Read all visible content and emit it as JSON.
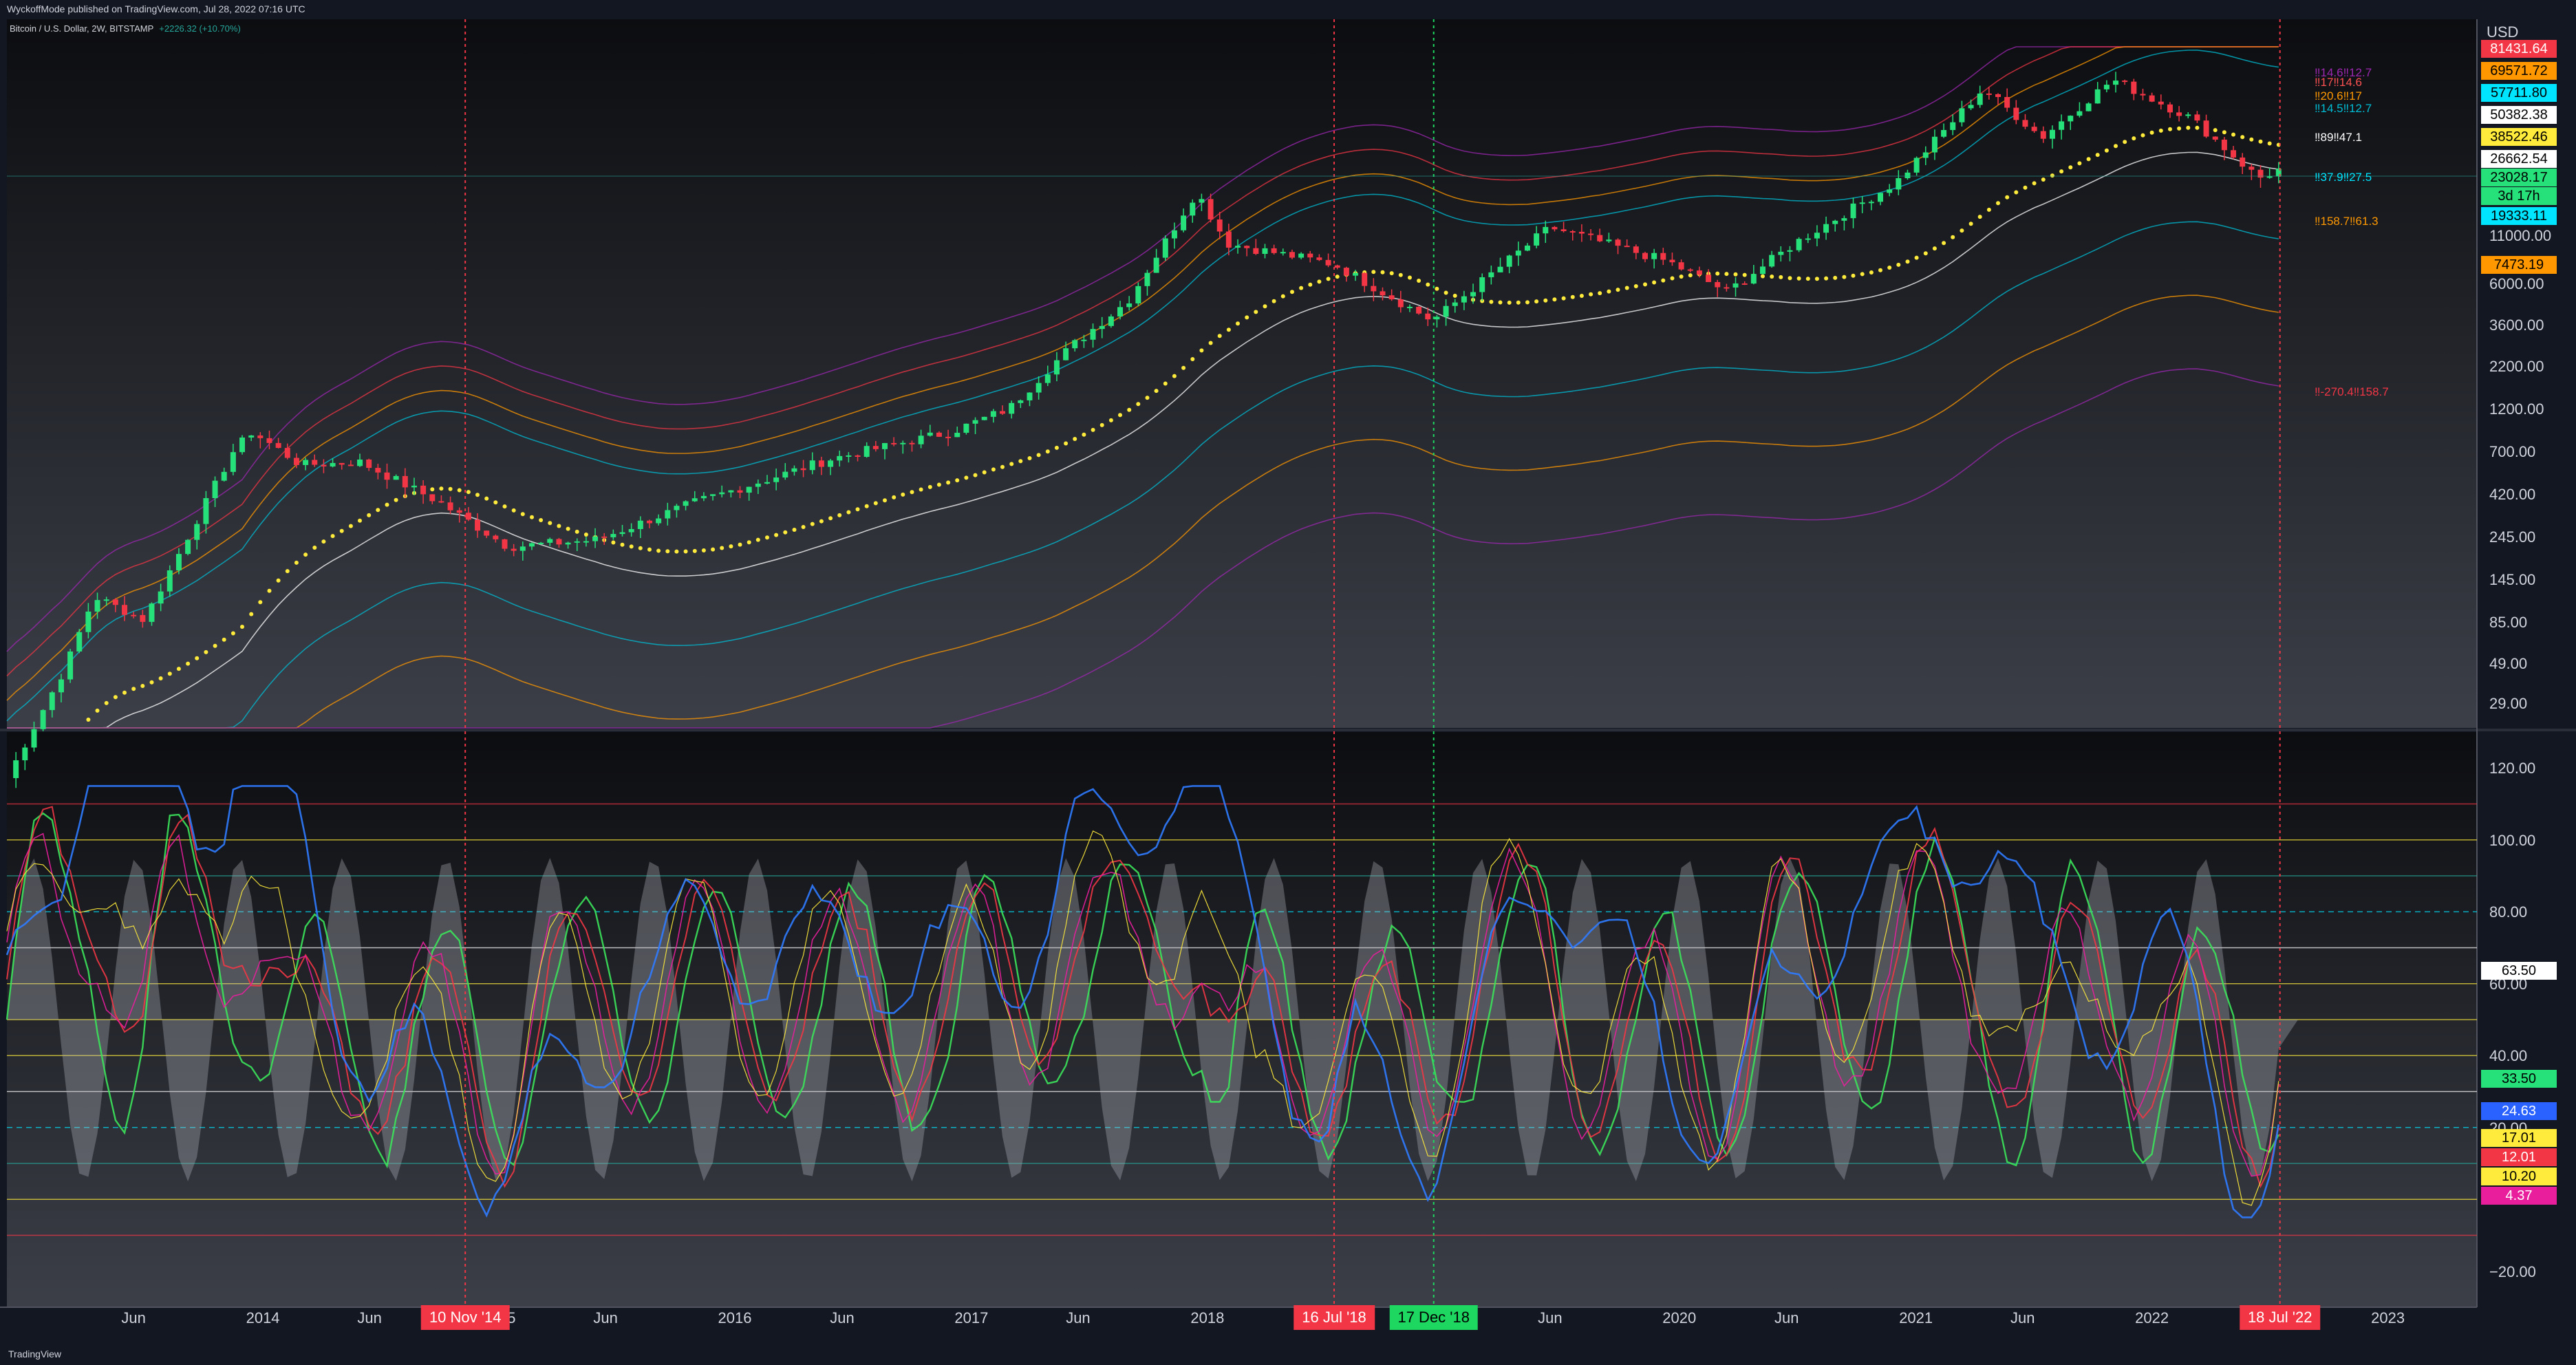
{
  "header": {
    "publish_text": "WyckoffMode published on TradingView.com, Jul 28, 2022 07:16 UTC",
    "symbol": "Bitcoin / U.S. Dollar, 2W, BITSTAMP",
    "change": "+2226.32 (+10.70%)"
  },
  "footer": {
    "brand": "TradingView"
  },
  "price_axis": {
    "currency": "USD",
    "ticks": [
      "11000.00",
      "6000.00",
      "3600.00",
      "2200.00",
      "1200.00",
      "700.00",
      "420.00",
      "245.00",
      "145.00",
      "85.00",
      "49.00",
      "29.00"
    ]
  },
  "price_tags": [
    {
      "text": "81431.64",
      "bg": "#f23645",
      "fg": "#ffffff"
    },
    {
      "text": "69571.72",
      "bg": "#ff9800",
      "fg": "#000000"
    },
    {
      "text": "57711.80",
      "bg": "#00e5ff",
      "fg": "#000000"
    },
    {
      "text": "50382.38",
      "bg": "#ffffff",
      "fg": "#000000"
    },
    {
      "text": "38522.46",
      "bg": "#ffeb3b",
      "fg": "#000000"
    },
    {
      "text": "26662.54",
      "bg": "#ffffff",
      "fg": "#000000"
    },
    {
      "text": "23028.17",
      "bg": "#26e07a",
      "fg": "#000000"
    },
    {
      "text": "3d 17h",
      "bg": "#26e07a",
      "fg": "#000000"
    },
    {
      "text": "19333.11",
      "bg": "#00e5ff",
      "fg": "#000000"
    },
    {
      "text": "7473.19",
      "bg": "#ff9800",
      "fg": "#000000"
    }
  ],
  "level_labels": [
    {
      "text": "‼14.6‼12.7",
      "color": "#9c27b0"
    },
    {
      "text": "‼17‼14.6",
      "color": "#ff5252"
    },
    {
      "text": "‼20.6‼17",
      "color": "#ff9800"
    },
    {
      "text": "‼14.5‼12.7",
      "color": "#00bcd4"
    },
    {
      "text": "‼89‼47.1",
      "color": "#ffffff"
    },
    {
      "text": "‼37.9‼27.5",
      "color": "#00e5ff"
    },
    {
      "text": "‼158.7‼61.3",
      "color": "#ff9800"
    },
    {
      "text": "‼-270.4‼158.7",
      "color": "#f23645"
    }
  ],
  "osc_axis": {
    "ticks": [
      "120.00",
      "100.00",
      "80.00",
      "60.00",
      "40.00",
      "20.00",
      "−20.00"
    ]
  },
  "osc_tags": [
    {
      "text": "63.50",
      "bg": "#ffffff",
      "fg": "#000000"
    },
    {
      "text": "33.50",
      "bg": "#26e07a",
      "fg": "#000000"
    },
    {
      "text": "24.63",
      "bg": "#2962ff",
      "fg": "#ffffff"
    },
    {
      "text": "17.01",
      "bg": "#ffeb3b",
      "fg": "#000000"
    },
    {
      "text": "12.01",
      "bg": "#f23645",
      "fg": "#ffffff"
    },
    {
      "text": "10.20",
      "bg": "#ffeb3b",
      "fg": "#000000"
    },
    {
      "text": "4.37",
      "bg": "#e91e9d",
      "fg": "#ffffff"
    }
  ],
  "time_axis": {
    "labels": [
      "Jun",
      "2014",
      "Jun",
      "2015",
      "Jun",
      "2016",
      "Jun",
      "2017",
      "Jun",
      "2018",
      "Jun",
      "2019",
      "Jun",
      "2020",
      "Jun",
      "2021",
      "Jun",
      "2022",
      "2023"
    ],
    "events": [
      {
        "text": "10 Nov '14",
        "color": "#f23645"
      },
      {
        "text": "16 Jul '18",
        "color": "#f23645"
      },
      {
        "text": "17 Dec '18",
        "color": "#1ed760"
      },
      {
        "text": "18 Jul '22",
        "color": "#f23645"
      }
    ]
  },
  "chart_data": {
    "type": "line",
    "price": {
      "scale": "log",
      "ylim": [
        24,
        100000
      ],
      "points": [
        [
          "2012-12-01",
          13
        ],
        [
          "2013-03-01",
          50
        ],
        [
          "2013-04-15",
          120
        ],
        [
          "2013-07-01",
          90
        ],
        [
          "2013-11-15",
          700
        ],
        [
          "2013-12-15",
          900
        ],
        [
          "2014-03-01",
          600
        ],
        [
          "2014-06-01",
          620
        ],
        [
          "2014-10-01",
          380
        ],
        [
          "2015-01-15",
          220
        ],
        [
          "2015-06-01",
          240
        ],
        [
          "2015-11-01",
          380
        ],
        [
          "2016-06-01",
          650
        ],
        [
          "2016-12-01",
          900
        ],
        [
          "2017-03-01",
          1200
        ],
        [
          "2017-06-01",
          2500
        ],
        [
          "2017-09-01",
          4500
        ],
        [
          "2017-12-15",
          17000
        ],
        [
          "2018-02-01",
          9000
        ],
        [
          "2018-07-15",
          7000
        ],
        [
          "2018-12-15",
          3500
        ],
        [
          "2019-06-15",
          11000
        ],
        [
          "2019-12-15",
          7200
        ],
        [
          "2020-03-15",
          5000
        ],
        [
          "2020-07-01",
          9200
        ],
        [
          "2020-12-01",
          19000
        ],
        [
          "2021-04-15",
          60000
        ],
        [
          "2021-07-15",
          33000
        ],
        [
          "2021-11-01",
          67000
        ],
        [
          "2022-03-01",
          42000
        ],
        [
          "2022-06-15",
          20000
        ],
        [
          "2022-07-28",
          23028.17
        ]
      ]
    },
    "oscillator": {
      "ylim": [
        -30,
        130
      ],
      "levels": [
        110,
        100,
        90,
        80,
        70,
        60,
        50,
        40,
        30,
        20,
        10,
        0,
        -10
      ]
    },
    "events": [
      {
        "date": "2014-11-10",
        "color": "#f23645"
      },
      {
        "date": "2018-07-16",
        "color": "#f23645"
      },
      {
        "date": "2018-12-17",
        "color": "#1ed760"
      },
      {
        "date": "2022-07-18",
        "color": "#f23645"
      }
    ]
  }
}
